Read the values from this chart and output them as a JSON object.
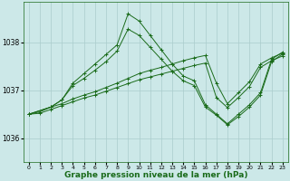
{
  "background_color": "#cce8e8",
  "grid_color": "#aacccc",
  "line_color": "#1a6b1a",
  "title": "Graphe pression niveau de la mer (hPa)",
  "title_fontsize": 6.5,
  "xlim": [
    -0.5,
    23.5
  ],
  "ylim": [
    1035.5,
    1038.85
  ],
  "yticks": [
    1036,
    1037,
    1038
  ],
  "xticks": [
    0,
    1,
    2,
    3,
    4,
    5,
    6,
    7,
    8,
    9,
    10,
    11,
    12,
    13,
    14,
    15,
    16,
    17,
    18,
    19,
    20,
    21,
    22,
    23
  ],
  "line1_x": [
    0,
    2,
    3,
    4,
    5,
    6,
    7,
    8,
    9,
    10,
    11,
    12,
    13,
    14,
    15,
    16,
    17,
    18,
    19,
    20,
    21,
    22,
    23
  ],
  "line1_y": [
    1036.5,
    1036.65,
    1036.8,
    1037.15,
    1037.35,
    1037.55,
    1037.75,
    1037.95,
    1038.6,
    1038.45,
    1038.15,
    1037.85,
    1037.55,
    1037.3,
    1037.2,
    1036.7,
    1036.5,
    1036.3,
    1036.5,
    1036.7,
    1036.95,
    1037.65,
    1037.8
  ],
  "line2_x": [
    0,
    2,
    3,
    4,
    5,
    6,
    7,
    8,
    9,
    10,
    11,
    12,
    13,
    14,
    15,
    16,
    17,
    18,
    19,
    20,
    21,
    22,
    23
  ],
  "line2_y": [
    1036.5,
    1036.65,
    1036.8,
    1037.1,
    1037.25,
    1037.42,
    1037.6,
    1037.82,
    1038.28,
    1038.15,
    1037.9,
    1037.65,
    1037.4,
    1037.2,
    1037.1,
    1036.65,
    1036.48,
    1036.28,
    1036.45,
    1036.65,
    1036.9,
    1037.6,
    1037.76
  ],
  "line3_x": [
    0,
    1,
    2,
    3,
    4,
    5,
    6,
    7,
    8,
    9,
    10,
    11,
    12,
    13,
    14,
    15,
    16,
    17,
    18,
    19,
    20,
    21,
    22,
    23
  ],
  "line3_y": [
    1036.5,
    1036.55,
    1036.65,
    1036.72,
    1036.82,
    1036.9,
    1036.97,
    1037.06,
    1037.15,
    1037.25,
    1037.35,
    1037.42,
    1037.48,
    1037.55,
    1037.62,
    1037.68,
    1037.73,
    1037.15,
    1036.72,
    1036.95,
    1037.18,
    1037.55,
    1037.68,
    1037.78
  ],
  "line4_x": [
    0,
    1,
    2,
    3,
    4,
    5,
    6,
    7,
    8,
    9,
    10,
    11,
    12,
    13,
    14,
    15,
    16,
    17,
    18,
    19,
    20,
    21,
    22,
    23
  ],
  "line4_y": [
    1036.5,
    1036.52,
    1036.6,
    1036.68,
    1036.76,
    1036.84,
    1036.9,
    1036.98,
    1037.06,
    1037.14,
    1037.22,
    1037.28,
    1037.34,
    1037.4,
    1037.46,
    1037.52,
    1037.57,
    1036.85,
    1036.64,
    1036.85,
    1037.08,
    1037.48,
    1037.62,
    1037.72
  ]
}
